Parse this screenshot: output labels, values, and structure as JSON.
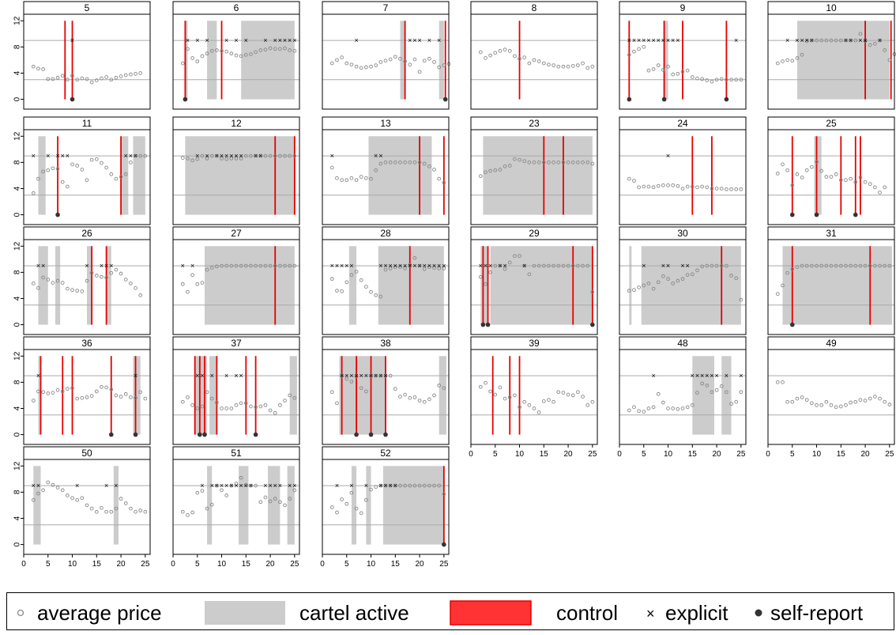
{
  "legend": {
    "price_label": "average price",
    "cartel_label": "cartel active",
    "control_label": "control",
    "explicit_label": "explicit",
    "self_report_label": "self-report"
  },
  "colors": {
    "cartel": "#cccccc",
    "control": "#e60000",
    "price": "#888888",
    "hline": "#aaaaaa"
  },
  "chart_data": [
    {
      "title": "5",
      "type": "scatter",
      "cartel": [],
      "control": [
        8.5,
        10
      ],
      "explicit": [
        10
      ],
      "self_report": [
        10
      ],
      "price": [
        5,
        4.7,
        4.6,
        3.1,
        3.1,
        3.3,
        3.6,
        3,
        3.6,
        3,
        3.2,
        3.1,
        2.6,
        2.9,
        3.2,
        3.4,
        3,
        3.3,
        3.5,
        3.7,
        3.8,
        3.9,
        4
      ]
    },
    {
      "title": "6",
      "type": "scatter",
      "cartel": [
        [
          2.5,
          3
        ],
        [
          7,
          9
        ],
        [
          14,
          25
        ]
      ],
      "control": [
        2.5,
        10
      ],
      "explicit": [
        3,
        5,
        7,
        11,
        13,
        15,
        19,
        21,
        22,
        23,
        24,
        25
      ],
      "self_report": [
        2.5
      ],
      "price": [
        5.5,
        7.7,
        6.3,
        5.8,
        6.6,
        7,
        7.4,
        7.5,
        7.4,
        7.3,
        7,
        6.7,
        6.6,
        6.8,
        6.9,
        7.2,
        7.5,
        7.6,
        7.8,
        7.7,
        7.7,
        7.8,
        7.5,
        7.4
      ]
    },
    {
      "title": "7",
      "type": "scatter",
      "cartel": [
        [
          16,
          17
        ],
        [
          24,
          25
        ]
      ],
      "control": [
        17,
        25.3
      ],
      "explicit": [
        7,
        18,
        19,
        20,
        22,
        24
      ],
      "self_report": [
        25.3
      ],
      "price": [
        5.5,
        6,
        6.4,
        5.5,
        5.3,
        5,
        4.8,
        4.9,
        5,
        5.2,
        5.7,
        5.9,
        6.1,
        6.5,
        6.2,
        5.8,
        5.3,
        6.1,
        4.2,
        5.9,
        6.2,
        5.7,
        4.9,
        5.2,
        5.4
      ]
    },
    {
      "title": "8",
      "type": "scatter",
      "cartel": [],
      "control": [
        10
      ],
      "explicit": [],
      "self_report": [],
      "price": [
        7.2,
        6.3,
        6.7,
        7.1,
        7.4,
        7.6,
        7.4,
        6.6,
        6.2,
        6.4,
        5.5,
        6,
        5.8,
        5.5,
        5.3,
        5.2,
        5,
        5,
        5,
        5.1,
        5.2,
        5.5,
        4.8,
        5
      ]
    },
    {
      "title": "9",
      "type": "scatter",
      "cartel": [
        [
          9,
          10
        ]
      ],
      "control": [
        2,
        9.2,
        13,
        22
      ],
      "explicit": [
        2,
        3,
        4,
        5,
        6,
        7,
        8,
        9,
        10,
        11,
        12,
        24
      ],
      "self_report": [
        2,
        9.2,
        22
      ],
      "price": [
        6.8,
        7.3,
        7.7,
        8,
        4.4,
        4.6,
        5.2,
        4.5,
        5,
        3.8,
        3.9,
        4.2,
        4.4,
        3.4,
        3.2,
        3.1,
        2.9,
        2.7,
        3,
        3.1,
        3,
        3,
        3,
        3
      ]
    },
    {
      "title": "10",
      "type": "scatter",
      "cartel": [
        [
          6,
          25
        ]
      ],
      "control": [
        20,
        25.3
      ],
      "explicit": [
        4,
        6,
        7,
        8,
        9,
        16,
        17,
        19,
        20,
        23
      ],
      "self_report": [],
      "price": [
        5.5,
        5.8,
        6,
        5.9,
        6.3,
        6.8,
        8.9,
        9,
        9,
        9,
        9,
        9,
        9,
        9,
        9,
        9,
        9,
        10,
        8.9,
        8.3,
        8.5,
        9,
        7.5,
        6,
        6.9
      ]
    },
    {
      "title": "11",
      "type": "scatter",
      "cartel": [
        [
          3,
          4.5
        ],
        [
          20,
          21.5
        ],
        [
          22.5,
          25
        ]
      ],
      "control": [
        7,
        20
      ],
      "explicit": [
        2,
        5,
        7,
        8,
        9,
        21,
        22,
        23
      ],
      "self_report": [
        7
      ],
      "price": [
        3.3,
        5.5,
        6.6,
        6.8,
        7.1,
        7,
        5,
        4.3,
        7.7,
        7.5,
        6.9,
        5.3,
        8.4,
        8.5,
        7.9,
        7.2,
        6.2,
        5.5,
        5.8,
        6.2,
        8,
        9,
        9,
        9
      ]
    },
    {
      "title": "12",
      "type": "scatter",
      "cartel": [
        [
          2.5,
          25
        ]
      ],
      "control": [
        21,
        25
      ],
      "explicit": [
        5,
        7,
        9,
        10,
        11,
        12,
        13,
        14,
        17,
        18
      ],
      "self_report": [],
      "price": [
        8.7,
        8.6,
        8.3,
        8.5,
        9,
        8.6,
        9,
        9,
        8.6,
        8.5,
        8.6,
        8.6,
        8.6,
        9,
        9,
        9,
        9,
        9,
        9,
        9,
        9,
        9,
        9,
        9
      ]
    },
    {
      "title": "13",
      "type": "scatter",
      "cartel": [
        [
          9.5,
          22.5
        ]
      ],
      "control": [
        20,
        25
      ],
      "explicit": [
        2,
        11,
        12
      ],
      "self_report": [],
      "price": [
        7.2,
        5.6,
        5.3,
        5.3,
        5.6,
        5.3,
        5.8,
        5.6,
        5.5,
        6.8,
        7.8,
        8,
        8,
        8,
        8,
        8,
        8,
        8,
        8,
        7.8,
        7.4,
        6.9,
        5.5,
        4.9
      ]
    },
    {
      "title": "23",
      "type": "scatter",
      "cartel": [
        [
          2.5,
          25
        ]
      ],
      "control": [
        15,
        19
      ],
      "explicit": [],
      "self_report": [],
      "price": [
        5.9,
        6.5,
        6.7,
        6.8,
        6.9,
        7.4,
        7.5,
        8.5,
        8.4,
        8.2,
        8,
        8,
        8,
        8,
        8,
        8,
        8,
        8,
        8,
        8,
        8,
        8,
        8,
        7.8
      ]
    },
    {
      "title": "24",
      "type": "scatter",
      "cartel": [],
      "control": [
        15,
        19
      ],
      "explicit": [
        10
      ],
      "self_report": [],
      "price": [
        5.5,
        5.2,
        4.2,
        4.3,
        4.3,
        4.2,
        4.4,
        4.5,
        4.5,
        4.5,
        4.4,
        4,
        4.3,
        4.3,
        4.2,
        4.3,
        4.2,
        4,
        4,
        4,
        3.9,
        3.9,
        3.9,
        3.9
      ]
    },
    {
      "title": "25",
      "type": "scatter",
      "cartel": [
        [
          9.5,
          11
        ]
      ],
      "control": [
        5,
        10,
        15,
        18,
        19
      ],
      "explicit": [],
      "self_report": [
        5,
        10,
        18
      ],
      "price": [
        6.3,
        7.7,
        6.8,
        4.5,
        6.2,
        5.7,
        6.8,
        7.3,
        8.1,
        6.7,
        5.8,
        5.8,
        6.2,
        5.3,
        5.3,
        5.5,
        5,
        5.7,
        5,
        4.7,
        4.2,
        3.4,
        4.2
      ]
    },
    {
      "title": "26",
      "type": "scatter",
      "cartel": [
        [
          3,
          5
        ],
        [
          6.5,
          7.5
        ],
        [
          13,
          14
        ],
        [
          17,
          18
        ]
      ],
      "control": [
        14,
        17
      ],
      "explicit": [
        3,
        4,
        13,
        16,
        17,
        18
      ],
      "self_report": [],
      "price": [
        6.3,
        5.6,
        7.2,
        6.9,
        6.4,
        6.7,
        6.4,
        5.5,
        5.3,
        5.2,
        5.1,
        6.7,
        7.9,
        7.5,
        7.3,
        7.2,
        7.9,
        8.4,
        7.8,
        6.9,
        6.3,
        5.6,
        4.5
      ]
    },
    {
      "title": "27",
      "type": "scatter",
      "cartel": [
        [
          6.5,
          25
        ]
      ],
      "control": [
        21
      ],
      "explicit": [
        2,
        4
      ],
      "self_report": [],
      "price": [
        6.2,
        5,
        7.6,
        6.2,
        6.4,
        8.4,
        8.7,
        8.9,
        9,
        9,
        9,
        9,
        9,
        9,
        9,
        9,
        9,
        9,
        9,
        9,
        9,
        9,
        9,
        9
      ]
    },
    {
      "title": "28",
      "type": "scatter",
      "cartel": [
        [
          5.5,
          7
        ],
        [
          11.5,
          25
        ]
      ],
      "control": [
        18
      ],
      "explicit": [
        2,
        3,
        4,
        5,
        6,
        12,
        13,
        14,
        15,
        16,
        17,
        18,
        19,
        20,
        21,
        22,
        23,
        24,
        25
      ],
      "self_report": [],
      "price": [
        7,
        5.2,
        5.1,
        6.5,
        7.6,
        8.1,
        6.8,
        5.8,
        5,
        4.5,
        4.3,
        8.4,
        8.6,
        8.8,
        8.8,
        8.6,
        9.1,
        10.2,
        9,
        8.5,
        8.8,
        8.7,
        8.6,
        8.6
      ]
    },
    {
      "title": "29",
      "type": "scatter",
      "cartel": [
        [
          2,
          3.5
        ],
        [
          4,
          25
        ]
      ],
      "control": [
        2.5,
        3.5,
        21,
        25
      ],
      "explicit": [
        2,
        3,
        4,
        6,
        7,
        11
      ],
      "self_report": [
        2.5,
        3.5,
        25
      ],
      "price": [
        7.3,
        6.2,
        8,
        9,
        9,
        8.5,
        9.5,
        10.5,
        10.5,
        9,
        7.7,
        9,
        9,
        9,
        9,
        9,
        9,
        9,
        9,
        9,
        9,
        9,
        9,
        5
      ]
    },
    {
      "title": "30",
      "type": "scatter",
      "cartel": [
        [
          2,
          2.5
        ],
        [
          4.5,
          25
        ]
      ],
      "control": [
        21
      ],
      "explicit": [
        5,
        9,
        10,
        13,
        14
      ],
      "self_report": [],
      "price": [
        5.2,
        5.3,
        5.7,
        6,
        6.3,
        5.5,
        6.5,
        7.4,
        7,
        6.3,
        6.7,
        7,
        7.6,
        7.7,
        8.3,
        8.9,
        9,
        9,
        9,
        9,
        9,
        7.5,
        7.1,
        3.8
      ]
    },
    {
      "title": "31",
      "type": "scatter",
      "cartel": [
        [
          3,
          25.5
        ]
      ],
      "control": [
        5,
        21
      ],
      "explicit": [],
      "self_report": [
        5
      ],
      "price": [
        4.7,
        6,
        7.9,
        8.5,
        8.8,
        9,
        9,
        9,
        9,
        9,
        9,
        9,
        9,
        9,
        9,
        9,
        9,
        9,
        9,
        9,
        9,
        9,
        9,
        9
      ]
    },
    {
      "title": "36",
      "type": "scatter",
      "cartel": [
        [
          3,
          3.5
        ],
        [
          22.5,
          24
        ]
      ],
      "control": [
        3.5,
        8,
        10,
        18,
        23
      ],
      "explicit": [
        3,
        23
      ],
      "self_report": [
        18,
        23
      ],
      "price": [
        5.2,
        6.6,
        6.5,
        6.3,
        6.4,
        6.8,
        6.6,
        7,
        7.1,
        5.5,
        5.6,
        5.7,
        5.9,
        6.6,
        7.3,
        7.2,
        6.9,
        6,
        5.8,
        6.2,
        5.7,
        5.6,
        6.5,
        5.5
      ]
    },
    {
      "title": "37",
      "type": "scatter",
      "cartel": [
        [
          4.5,
          7
        ],
        [
          7.5,
          9
        ],
        [
          24,
          25.5
        ]
      ],
      "control": [
        4.5,
        5.5,
        6.5,
        9,
        15,
        17
      ],
      "explicit": [
        5,
        6,
        8,
        11,
        13,
        14
      ],
      "self_report": [
        5.5,
        6.5,
        17
      ],
      "price": [
        5,
        5.7,
        4.5,
        4,
        4.3,
        6.5,
        5.5,
        4.9,
        4,
        4,
        4,
        4.5,
        4.8,
        4.8,
        4.3,
        4.2,
        4.3,
        4.5,
        3.7,
        3.3,
        4.5,
        5.2,
        6,
        5.6
      ]
    },
    {
      "title": "38",
      "type": "scatter",
      "cartel": [
        [
          3.5,
          13
        ],
        [
          24,
          25.5
        ]
      ],
      "control": [
        4,
        7,
        10,
        13
      ],
      "explicit": [
        4,
        5,
        6,
        7,
        8,
        9,
        10,
        11,
        12,
        13
      ],
      "self_report": [
        7,
        10,
        13
      ],
      "price": [
        6.5,
        4.8,
        9,
        8.5,
        8.1,
        8.9,
        7.1,
        6.6,
        9,
        9,
        9,
        9,
        9,
        7,
        5.8,
        6.1,
        5.6,
        5.7,
        5.2,
        5,
        5.4,
        6,
        7.5,
        7.1
      ]
    },
    {
      "title": "39",
      "type": "scatter",
      "cartel": [],
      "control": [
        4.5,
        8,
        10
      ],
      "explicit": [],
      "self_report": [],
      "price": [
        7.3,
        7.9,
        6.6,
        6.1,
        7.2,
        5.5,
        5.7,
        6,
        4.2,
        5,
        4.5,
        4,
        3.4,
        5.1,
        5.3,
        5,
        6.5,
        6.4,
        6.1,
        6,
        6.5,
        5.8,
        4.5,
        5
      ]
    },
    {
      "title": "48",
      "type": "scatter",
      "cartel": [
        [
          15,
          19.5
        ],
        [
          21,
          23
        ]
      ],
      "control": [],
      "explicit": [
        7,
        15,
        16,
        17,
        18,
        19,
        20,
        22,
        25
      ],
      "self_report": [],
      "price": [
        3.7,
        4.2,
        3.6,
        3.5,
        4,
        4.2,
        6.2,
        4.9,
        4,
        4,
        3.9,
        4,
        4.2,
        4.5,
        6.4,
        7.8,
        7.5,
        6.5,
        6.8,
        7.4,
        6.5,
        4.7,
        5,
        6.5
      ]
    },
    {
      "title": "49",
      "type": "scatter",
      "cartel": [],
      "control": [],
      "explicit": [],
      "self_report": [],
      "price": [
        8,
        8,
        5,
        5,
        5.5,
        5.7,
        5.3,
        4.8,
        4.5,
        4.5,
        5,
        4.5,
        4.2,
        4.3,
        4.5,
        4.9,
        5,
        5.3,
        5.2,
        5.5,
        5.8,
        5.5,
        5,
        4.6
      ]
    },
    {
      "title": "50",
      "type": "scatter",
      "cartel": [
        [
          2,
          3.5
        ],
        [
          18.5,
          19.5
        ]
      ],
      "control": [],
      "explicit": [
        2,
        3,
        11,
        17,
        19
      ],
      "self_report": [],
      "price": [
        6.8,
        7.8,
        8.3,
        9.5,
        9.1,
        8.7,
        8.3,
        7.5,
        7.1,
        6.8,
        7.1,
        6,
        5.5,
        5,
        5.6,
        5,
        5,
        5.5,
        7,
        6.3,
        5.5,
        5,
        5.2,
        5
      ]
    },
    {
      "title": "51",
      "type": "scatter",
      "cartel": [
        [
          7,
          8
        ],
        [
          13.5,
          15.5
        ],
        [
          19.5,
          22
        ],
        [
          23.5,
          25
        ]
      ],
      "control": [],
      "explicit": [
        6,
        8,
        9,
        10,
        11,
        12,
        13,
        14,
        15,
        16,
        19,
        20,
        21,
        22,
        24,
        25
      ],
      "self_report": [],
      "price": [
        5,
        4.5,
        4.9,
        7.9,
        8.2,
        5.5,
        6.1,
        9,
        8.3,
        7.5,
        9,
        9.3,
        10.2,
        9.1,
        9,
        9,
        6.5,
        7.2,
        6.6,
        7,
        6.5,
        6,
        7,
        8.3
      ]
    },
    {
      "title": "52",
      "type": "scatter",
      "cartel": [
        [
          6,
          7
        ],
        [
          9,
          10
        ],
        [
          12.5,
          25
        ]
      ],
      "control": [
        25
      ],
      "explicit": [
        3,
        6,
        9,
        12,
        13,
        14,
        15
      ],
      "self_report": [
        25
      ],
      "price": [
        5.7,
        4.9,
        6.9,
        6.2,
        7.9,
        5.5,
        4.8,
        6.8,
        8.4,
        8.8,
        9,
        9,
        9,
        9,
        9,
        9,
        9,
        9,
        9,
        9,
        9,
        9,
        9,
        7.7
      ]
    }
  ],
  "axes": {
    "x_ticks": [
      "0",
      "5",
      "10",
      "15",
      "20",
      "25"
    ],
    "y_ticks": [
      "0",
      "4",
      "8",
      "12"
    ],
    "xlim": [
      0,
      26
    ],
    "ylim": [
      -1.5,
      13
    ],
    "hlines": [
      3,
      9
    ]
  }
}
